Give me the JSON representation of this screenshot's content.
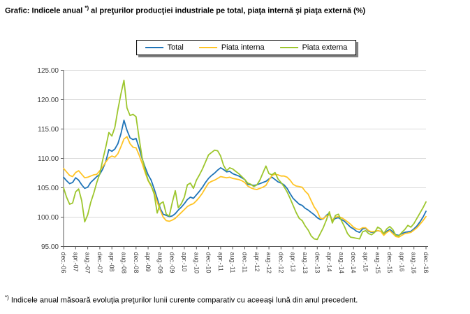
{
  "title": {
    "prefix": "Grafic: Indicele anual",
    "marker": "*)",
    "suffix": "al preţurilor producţiei industriale pe total, piaţa internă şi piaţa externă (%)"
  },
  "footnote": {
    "marker": "*)",
    "text": "Indicele anual măsoară evoluţia preţurilor lunii curente comparativ cu aceeaşi lună din anul precedent."
  },
  "chart_data": {
    "type": "line",
    "title": "Indicele anual al preţurilor producţiei industriale (%)",
    "legend_position": "top",
    "grid": true,
    "ylim": [
      95,
      125
    ],
    "y_ticks": [
      "125.00",
      "120.00",
      "115.00",
      "110.00",
      "105.00",
      "100.00",
      "95.00"
    ],
    "x_label_step": 4,
    "x_labels": [
      "dec.-06",
      "apr.-07",
      "aug.-07",
      "dec.-07",
      "apr.-08",
      "aug.-08",
      "dec.-08",
      "apr.-09",
      "aug.-09",
      "dec.-09",
      "apr.-10",
      "aug.-10",
      "dec.-10",
      "apr.-11",
      "aug.-11",
      "dec.-11",
      "apr.-12",
      "aug.-12",
      "dec.-12",
      "apr.-13",
      "aug.-13",
      "dec.-13",
      "apr.-14",
      "aug.-14",
      "dec.-14",
      "apr.-15",
      "aug.-15",
      "dec.-15",
      "apr.-16",
      "aug.-16",
      "dec.-16"
    ],
    "colors": {
      "grid": "#D9D9D9",
      "axis": "#595959",
      "tick_text": "#404040"
    },
    "series": [
      {
        "name": "Total",
        "color": "#1F74B8",
        "values": [
          106.8,
          106.2,
          105.7,
          105.9,
          106.7,
          106.3,
          105.5,
          104.9,
          105.1,
          105.9,
          106.4,
          106.9,
          107.3,
          108.2,
          109.5,
          111.5,
          111.2,
          111.6,
          112.5,
          114.2,
          116.5,
          114.8,
          113.5,
          113.2,
          113.4,
          111.8,
          110.0,
          108.5,
          107.2,
          106.3,
          104.8,
          103.2,
          101.5,
          100.5,
          100.3,
          100.1,
          100.2,
          100.6,
          101.2,
          101.7,
          102.3,
          103.0,
          103.4,
          103.2,
          103.8,
          104.4,
          105.1,
          105.9,
          106.6,
          107.1,
          107.5,
          108.0,
          108.4,
          108.1,
          107.7,
          107.8,
          107.4,
          107.2,
          107.0,
          106.7,
          106.4,
          105.6,
          105.5,
          105.4,
          105.5,
          105.7,
          105.9,
          106.1,
          106.5,
          106.8,
          106.4,
          106.0,
          105.8,
          105.5,
          104.9,
          104.0,
          103.2,
          102.7,
          102.2,
          102.0,
          101.5,
          101.2,
          100.8,
          100.4,
          99.9,
          99.6,
          99.7,
          100.3,
          100.7,
          99.3,
          99.8,
          99.9,
          99.6,
          99.3,
          98.8,
          98.3,
          98.0,
          97.6,
          97.4,
          98.0,
          98.1,
          97.6,
          97.4,
          97.5,
          97.7,
          97.6,
          97.1,
          97.6,
          97.9,
          97.5,
          97.0,
          96.9,
          97.2,
          97.4,
          97.5,
          97.6,
          98.0,
          98.5,
          99.2,
          100.0,
          101.0
        ]
      },
      {
        "name": "Piata interna",
        "color": "#FFC425",
        "values": [
          108.3,
          107.7,
          107.1,
          106.9,
          107.6,
          107.9,
          107.3,
          106.7,
          106.8,
          107.0,
          107.2,
          107.3,
          107.9,
          108.6,
          109.4,
          110.1,
          110.4,
          110.2,
          110.8,
          112.0,
          113.3,
          113.7,
          112.5,
          111.9,
          111.8,
          110.6,
          109.2,
          107.6,
          106.2,
          105.3,
          104.2,
          102.6,
          101.2,
          100.0,
          99.4,
          99.3,
          99.5,
          99.8,
          100.3,
          100.8,
          101.3,
          101.8,
          102.1,
          102.3,
          102.8,
          103.4,
          104.1,
          105.0,
          105.8,
          106.1,
          106.3,
          106.6,
          106.9,
          106.8,
          106.7,
          106.8,
          106.6,
          106.5,
          106.4,
          106.2,
          105.9,
          105.3,
          105.0,
          104.8,
          104.7,
          104.9,
          105.1,
          105.4,
          106.3,
          107.1,
          107.3,
          107.2,
          107.0,
          107.0,
          106.8,
          106.3,
          105.6,
          105.3,
          105.2,
          105.1,
          104.4,
          103.9,
          102.8,
          101.7,
          101.0,
          99.8,
          99.7,
          100.2,
          100.4,
          99.5,
          100.0,
          100.1,
          99.9,
          99.6,
          99.2,
          98.8,
          98.3,
          98.0,
          97.9,
          98.2,
          98.2,
          97.7,
          97.5,
          97.6,
          97.7,
          97.6,
          96.9,
          97.4,
          97.7,
          97.2,
          96.7,
          96.6,
          96.9,
          97.2,
          97.3,
          97.4,
          97.8,
          98.2,
          98.8,
          99.4,
          100.1
        ]
      },
      {
        "name": "Piata externa",
        "color": "#9DC62D",
        "values": [
          105.0,
          103.4,
          102.2,
          102.4,
          104.3,
          104.8,
          102.8,
          99.2,
          100.4,
          102.5,
          104.1,
          105.9,
          107.4,
          109.8,
          112.0,
          114.4,
          113.8,
          115.3,
          118.3,
          121.0,
          123.3,
          118.6,
          117.3,
          117.5,
          117.1,
          113.5,
          110.2,
          108.0,
          106.3,
          105.4,
          103.9,
          100.7,
          102.3,
          102.6,
          100.5,
          100.2,
          102.5,
          104.5,
          101.6,
          102.3,
          103.4,
          105.5,
          105.8,
          104.9,
          106.3,
          107.2,
          108.2,
          109.4,
          110.6,
          111.0,
          111.4,
          111.3,
          110.4,
          108.8,
          107.9,
          108.4,
          108.2,
          107.8,
          107.4,
          106.9,
          106.4,
          105.8,
          105.6,
          105.2,
          105.5,
          106.3,
          107.5,
          108.7,
          107.4,
          107.2,
          107.6,
          106.5,
          105.9,
          105.2,
          104.3,
          103.2,
          102.0,
          100.8,
          99.8,
          99.4,
          98.5,
          97.8,
          96.8,
          96.3,
          96.2,
          97.2,
          98.2,
          99.5,
          100.9,
          99.0,
          100.3,
          100.5,
          99.4,
          98.4,
          97.2,
          96.6,
          96.5,
          96.4,
          96.3,
          97.5,
          97.7,
          97.2,
          97.0,
          97.4,
          98.3,
          98.0,
          97.2,
          98.0,
          98.4,
          97.9,
          96.9,
          96.8,
          97.4,
          97.9,
          98.6,
          98.3,
          98.9,
          99.8,
          100.7,
          101.6,
          102.6
        ]
      }
    ]
  }
}
